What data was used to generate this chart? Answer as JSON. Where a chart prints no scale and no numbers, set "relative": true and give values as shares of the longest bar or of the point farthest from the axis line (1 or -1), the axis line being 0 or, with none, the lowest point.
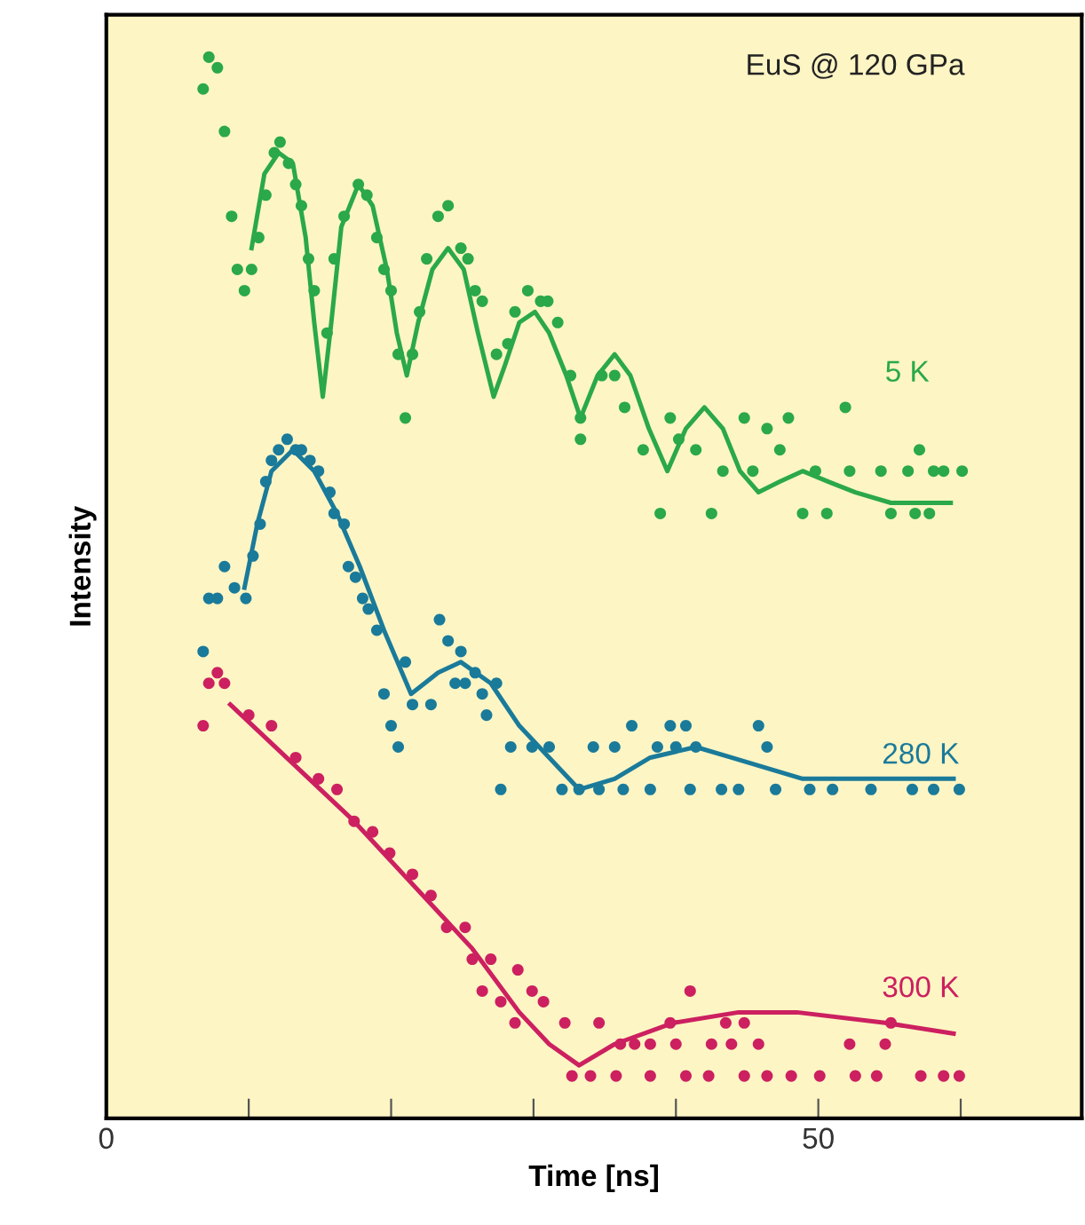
{
  "chart_data": {
    "type": "scatter",
    "xlabel": "Time [ns]",
    "ylabel": "Intensity",
    "relative": true,
    "annotations": [
      "EuS @ 120 GPa"
    ],
    "xlim": [
      0,
      68.5
    ],
    "xticks": [
      0,
      {
        "value": 10,
        "label": null
      },
      {
        "value": 20,
        "label": null
      },
      {
        "value": 30,
        "label": null
      },
      {
        "value": 40,
        "label": null
      },
      50,
      {
        "value": 60,
        "label": null
      }
    ],
    "grid": false,
    "legend": false,
    "series": [
      {
        "name": "5 K",
        "color": "#2aa84a",
        "marker": "circle",
        "x": [
          7.2,
          7.8,
          6.8,
          8.3,
          8.8,
          9.2,
          10.2,
          9.7,
          10.7,
          11.2,
          11.8,
          12.2,
          12.8,
          13.3,
          13.7,
          14.2,
          14.6,
          15.5,
          16.0,
          16.7,
          17.7,
          18.3,
          19.0,
          19.5,
          20.0,
          20.5,
          21.5,
          21.0,
          22.0,
          22.5,
          23.3,
          24.0,
          24.9,
          25.4,
          25.9,
          26.4,
          27.4,
          28.2,
          28.7,
          29.6,
          30.5,
          31.0,
          31.7,
          32.6,
          33.3,
          33.3,
          34.8,
          35.7,
          36.4,
          37.7,
          38.9,
          39.6,
          40.2,
          41.4,
          42.5,
          43.3,
          44.8,
          45.4,
          46.4,
          47.3,
          47.9,
          48.9,
          49.8,
          50.6,
          51.9,
          52.2,
          54.4,
          55.1,
          56.3,
          57.1,
          58.1,
          58.8,
          60.1,
          56.8,
          57.8
        ],
        "values": [
          1.0,
          0.99,
          0.97,
          0.93,
          0.85,
          0.8,
          0.8,
          0.78,
          0.83,
          0.87,
          0.91,
          0.92,
          0.9,
          0.88,
          0.86,
          0.81,
          0.78,
          0.74,
          0.81,
          0.85,
          0.88,
          0.87,
          0.83,
          0.8,
          0.78,
          0.72,
          0.72,
          0.66,
          0.76,
          0.81,
          0.85,
          0.86,
          0.82,
          0.81,
          0.78,
          0.77,
          0.72,
          0.73,
          0.76,
          0.78,
          0.77,
          0.77,
          0.75,
          0.7,
          0.66,
          0.64,
          0.7,
          0.7,
          0.67,
          0.63,
          0.57,
          0.66,
          0.64,
          0.63,
          0.57,
          0.61,
          0.66,
          0.61,
          0.65,
          0.63,
          0.66,
          0.57,
          0.61,
          0.57,
          0.67,
          0.61,
          0.61,
          0.57,
          0.61,
          0.63,
          0.61,
          0.61,
          0.61,
          0.57,
          0.57
        ]
      },
      {
        "color": "#2aa84a",
        "type": "line",
        "x": [
          10.2,
          11.1,
          12.1,
          13.1,
          14.0,
          14.6,
          15.2,
          15.8,
          16.5,
          17.7,
          18.7,
          19.7,
          20.4,
          21.1,
          21.9,
          22.9,
          24.0,
          25.1,
          26.1,
          27.2,
          28.0,
          29.0,
          30.1,
          31.1,
          32.3,
          33.3,
          34.5,
          35.7,
          36.8,
          38.1,
          39.4,
          40.7,
          42.0,
          43.3,
          44.5,
          45.8,
          47.3,
          48.9,
          50.7,
          52.6,
          55.1,
          57.2,
          59.3
        ],
        "values": [
          0.82,
          0.89,
          0.91,
          0.9,
          0.83,
          0.75,
          0.68,
          0.75,
          0.84,
          0.88,
          0.86,
          0.8,
          0.74,
          0.7,
          0.75,
          0.8,
          0.82,
          0.8,
          0.74,
          0.68,
          0.71,
          0.75,
          0.76,
          0.74,
          0.7,
          0.66,
          0.7,
          0.72,
          0.7,
          0.65,
          0.61,
          0.65,
          0.67,
          0.65,
          0.61,
          0.59,
          0.6,
          0.61,
          0.6,
          0.59,
          0.58,
          0.58,
          0.58
        ]
      },
      {
        "name": "280 K",
        "color": "#1a7a9a",
        "marker": "circle",
        "x": [
          6.8,
          7.2,
          7.8,
          8.3,
          9.0,
          9.8,
          10.3,
          10.8,
          11.2,
          11.6,
          12.1,
          12.7,
          13.3,
          13.7,
          14.3,
          14.9,
          15.7,
          16.0,
          16.7,
          17.0,
          17.5,
          18.0,
          18.4,
          19.0,
          19.5,
          20.0,
          20.5,
          21.0,
          21.5,
          22.8,
          23.4,
          24.0,
          24.5,
          24.9,
          25.2,
          25.9,
          26.4,
          26.7,
          27.4,
          27.7,
          28.4,
          29.9,
          31.1,
          32.0,
          33.2,
          34.2,
          34.6,
          35.7,
          36.3,
          36.9,
          38.2,
          38.7,
          39.6,
          40.0,
          40.7,
          41.0,
          41.4,
          43.2,
          44.4,
          45.8,
          46.4,
          47.0,
          49.4,
          51.0,
          53.7,
          56.6,
          58.1,
          59.9
        ],
        "values": [
          0.44,
          0.49,
          0.49,
          0.52,
          0.5,
          0.49,
          0.53,
          0.56,
          0.6,
          0.62,
          0.63,
          0.64,
          0.63,
          0.63,
          0.62,
          0.61,
          0.59,
          0.57,
          0.56,
          0.52,
          0.51,
          0.49,
          0.48,
          0.46,
          0.4,
          0.37,
          0.35,
          0.43,
          0.39,
          0.39,
          0.47,
          0.45,
          0.41,
          0.44,
          0.41,
          0.42,
          0.4,
          0.38,
          0.41,
          0.31,
          0.35,
          0.35,
          0.35,
          0.31,
          0.31,
          0.35,
          0.31,
          0.35,
          0.31,
          0.37,
          0.31,
          0.35,
          0.37,
          0.35,
          0.37,
          0.31,
          0.35,
          0.31,
          0.31,
          0.37,
          0.35,
          0.31,
          0.31,
          0.31,
          0.31,
          0.31,
          0.31,
          0.31
        ]
      },
      {
        "color": "#1a7a9a",
        "type": "line",
        "x": [
          9.7,
          10.6,
          11.6,
          13.1,
          14.6,
          16.2,
          17.8,
          19.5,
          21.4,
          23.3,
          24.9,
          27.0,
          29.0,
          31.1,
          33.2,
          35.7,
          38.2,
          41.4,
          43.9,
          46.4,
          48.9,
          52.6,
          56.0,
          59.5
        ],
        "values": [
          0.5,
          0.56,
          0.61,
          0.63,
          0.61,
          0.57,
          0.52,
          0.46,
          0.4,
          0.42,
          0.43,
          0.41,
          0.37,
          0.34,
          0.31,
          0.32,
          0.34,
          0.35,
          0.34,
          0.33,
          0.32,
          0.32,
          0.32,
          0.32
        ]
      },
      {
        "name": "300 K",
        "color": "#cc2060",
        "marker": "circle",
        "x": [
          6.8,
          7.2,
          7.8,
          8.3,
          10.0,
          11.6,
          13.3,
          14.9,
          16.2,
          17.4,
          18.7,
          19.9,
          21.5,
          22.8,
          23.9,
          25.2,
          25.7,
          27.0,
          26.4,
          27.7,
          28.9,
          28.7,
          29.9,
          30.7,
          32.2,
          32.7,
          34.0,
          34.6,
          35.8,
          36.1,
          37.1,
          38.2,
          38.2,
          39.6,
          40.0,
          40.7,
          41.0,
          42.3,
          42.5,
          43.5,
          43.9,
          44.8,
          44.8,
          45.8,
          46.4,
          48.1,
          50.1,
          52.2,
          52.6,
          54.1,
          54.7,
          55.1,
          57.2,
          58.8,
          59.9
        ],
        "values": [
          0.37,
          0.41,
          0.42,
          0.41,
          0.38,
          0.37,
          0.34,
          0.32,
          0.31,
          0.28,
          0.27,
          0.25,
          0.23,
          0.21,
          0.18,
          0.18,
          0.15,
          0.15,
          0.12,
          0.11,
          0.14,
          0.09,
          0.12,
          0.11,
          0.09,
          0.04,
          0.04,
          0.09,
          0.04,
          0.07,
          0.07,
          0.07,
          0.04,
          0.09,
          0.07,
          0.04,
          0.12,
          0.04,
          0.07,
          0.09,
          0.07,
          0.09,
          0.04,
          0.07,
          0.04,
          0.04,
          0.04,
          0.07,
          0.04,
          0.04,
          0.07,
          0.09,
          0.04,
          0.04,
          0.04
        ]
      },
      {
        "color": "#cc2060",
        "type": "line",
        "x": [
          8.7,
          17.4,
          25.7,
          29.0,
          31.1,
          33.2,
          35.7,
          39.8,
          44.4,
          48.5,
          54.7,
          59.5
        ],
        "values": [
          0.39,
          0.28,
          0.16,
          0.1,
          0.07,
          0.05,
          0.07,
          0.09,
          0.1,
          0.1,
          0.09,
          0.08
        ]
      }
    ]
  }
}
